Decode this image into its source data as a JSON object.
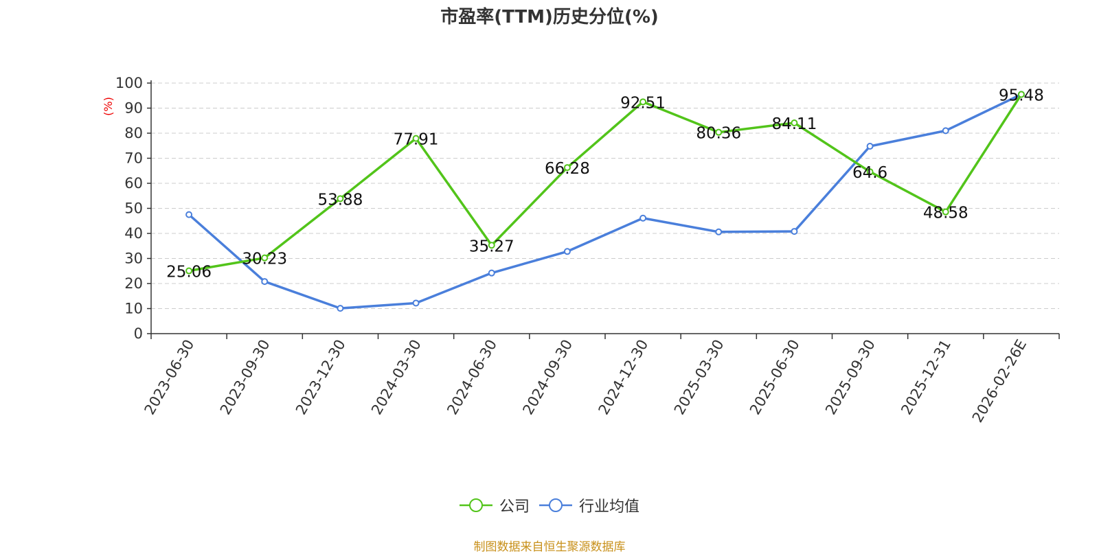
{
  "chart_data": {
    "type": "line",
    "title": "市盈率(TTM)历史分位(%)",
    "ylabel": "(%)",
    "xlabel": "",
    "categories": [
      "2023-06-30",
      "2023-09-30",
      "2023-12-30",
      "2024-03-30",
      "2024-06-30",
      "2024-09-30",
      "2024-12-30",
      "2025-03-30",
      "2025-06-30",
      "2025-09-30",
      "2025-12-31",
      "2026-02-26E"
    ],
    "ylim": [
      0,
      100
    ],
    "yticks": [
      0,
      10,
      20,
      30,
      40,
      50,
      60,
      70,
      80,
      90,
      100
    ],
    "grid": true,
    "legend_position": "bottom-center",
    "series": [
      {
        "name": "公司",
        "color": "#52c41a",
        "show_labels": true,
        "values": [
          25.06,
          30.23,
          53.88,
          77.91,
          35.27,
          66.28,
          92.51,
          80.36,
          84.11,
          64.6,
          48.58,
          95.48
        ]
      },
      {
        "name": "行业均值",
        "color": "#4a7fdb",
        "show_labels": false,
        "values": [
          47.5,
          20.8,
          10.1,
          12.2,
          24.2,
          32.8,
          46.1,
          40.6,
          40.8,
          74.8,
          81.0,
          95.5
        ]
      }
    ]
  },
  "source_text": "制图数据来自恒生聚源数据库"
}
